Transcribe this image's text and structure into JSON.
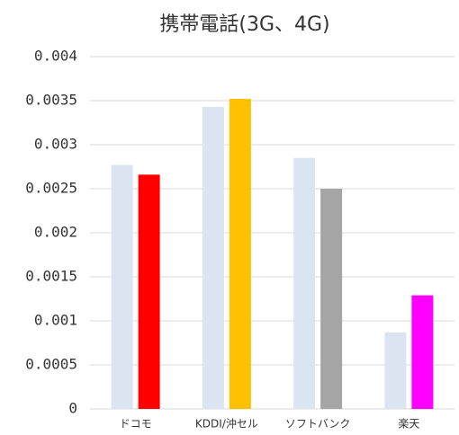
{
  "chart_data": {
    "type": "bar",
    "title": "携帯電話(3G、4G)",
    "categories": [
      "ドコモ",
      "KDDI/沖セル",
      "ソフトバンク",
      "楽天"
    ],
    "series": [
      {
        "colors": [
          "#dbe5f1",
          "#dbe5f1",
          "#dbe5f1",
          "#dbe5f1"
        ],
        "values": [
          0.00277,
          0.00343,
          0.00285,
          0.00087
        ]
      },
      {
        "colors": [
          "#ff0000",
          "#ffc000",
          "#a5a5a5",
          "#ff00ff"
        ],
        "values": [
          0.00266,
          0.00352,
          0.0025,
          0.00129
        ]
      }
    ],
    "ylim": [
      0,
      0.004
    ],
    "yticks": [
      0,
      0.0005,
      0.001,
      0.0015,
      0.002,
      0.0025,
      0.003,
      0.0035,
      0.004
    ],
    "grid": true
  }
}
